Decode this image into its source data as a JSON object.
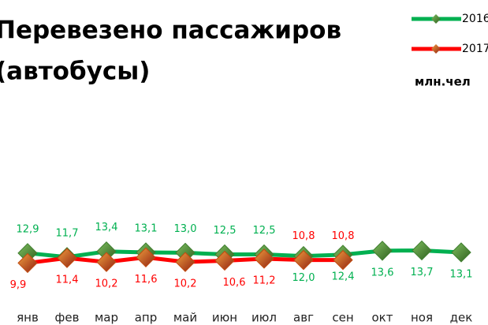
{
  "chart_data": {
    "type": "line",
    "title": "Перевезено пассажиров",
    "subtitle": "(автобусы)",
    "unit_label": "млн.чел",
    "categories": [
      "янв",
      "фев",
      "мар",
      "апр",
      "май",
      "июн",
      "июл",
      "авг",
      "сен",
      "окт",
      "ноя",
      "дек"
    ],
    "ylim": [
      0,
      60
    ],
    "series": [
      {
        "name": "2016",
        "color": "#00b050",
        "marker_color": "#3f7f2f",
        "values": [
          12.9,
          11.7,
          13.4,
          13.1,
          13.0,
          12.5,
          12.5,
          12.0,
          12.4,
          13.6,
          13.7,
          13.1
        ],
        "value_labels": [
          "12,9",
          "11,7",
          "13,4",
          "13,1",
          "13,0",
          "12,5",
          "12,5",
          "12,0",
          "12,4",
          "13,6",
          "13,7",
          "13,1"
        ]
      },
      {
        "name": "2017",
        "color": "#ff0000",
        "marker_color": "#c04a10",
        "values": [
          9.9,
          11.4,
          10.2,
          11.6,
          10.2,
          10.6,
          11.2,
          10.8,
          10.8,
          null,
          null,
          null
        ],
        "value_labels": [
          "9,9",
          "11,4",
          "10,2",
          "11,6",
          "10,2",
          "10,6",
          "11,2",
          "10,8",
          "10,8",
          null,
          null,
          null
        ]
      }
    ]
  }
}
